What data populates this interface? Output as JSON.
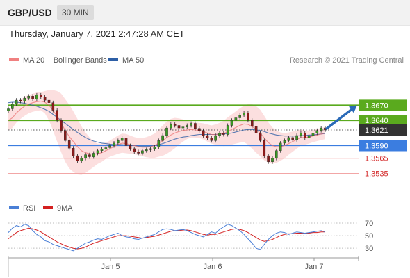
{
  "header": {
    "symbol": "GBP/USD",
    "timeframe_button": "30 MIN",
    "datetime": "Thursday, January 7, 2021 2:47:28 AM CET"
  },
  "colors": {
    "ma20": "#e96a6a",
    "bollinger_fill": "#fbd4d4",
    "ma50": "#2d5fa6",
    "resistance": "#5aaa1e",
    "support": "#3b7de0",
    "support_light": "#f2a6a6",
    "support_label": "#d42a2a",
    "current_price": "#333333",
    "arrow": "#2a6ab8",
    "candle_up": "#3a9a22",
    "candle_down": "#8c1a1a",
    "rsi": "#4a7fd6",
    "rsi_9ma": "#d42020"
  },
  "legend_main": [
    {
      "label": "MA 20 + Bollinger Bands",
      "color": "#f08080"
    },
    {
      "label": "MA 50",
      "color": "#2d5fa6"
    }
  ],
  "credit": "Research © 2021 Trading Central",
  "legend_rsi": [
    {
      "label": "RSI",
      "color": "#4a7fd6"
    },
    {
      "label": "9MA",
      "color": "#d42020"
    }
  ],
  "chart_data": {
    "type": "line",
    "title": "GBP/USD",
    "x_ticks": [
      "Jan 5",
      "Jan 6",
      "Jan 7"
    ],
    "y_range": [
      1.35,
      1.372
    ],
    "levels": [
      {
        "label": "1.3670",
        "value": 1.367,
        "type": "resistance"
      },
      {
        "label": "1.3640",
        "value": 1.364,
        "type": "resistance"
      },
      {
        "label": "1.3621",
        "value": 1.3621,
        "type": "current"
      },
      {
        "label": "1.3590",
        "value": 1.359,
        "type": "pivot"
      },
      {
        "label": "1.3565",
        "value": 1.3565,
        "type": "support"
      },
      {
        "label": "1.3535",
        "value": 1.3535,
        "type": "support"
      }
    ],
    "price_close": [
      1.3663,
      1.3672,
      1.368,
      1.3678,
      1.3684,
      1.3688,
      1.3682,
      1.369,
      1.3686,
      1.368,
      1.3675,
      1.366,
      1.364,
      1.362,
      1.36,
      1.3585,
      1.357,
      1.356,
      1.3565,
      1.3572,
      1.3568,
      1.3575,
      1.358,
      1.3583,
      1.3586,
      1.359,
      1.3595,
      1.36,
      1.3605,
      1.359,
      1.3584,
      1.3578,
      1.3575,
      1.358,
      1.3582,
      1.3584,
      1.3587,
      1.36,
      1.361,
      1.3625,
      1.3632,
      1.363,
      1.3625,
      1.3627,
      1.363,
      1.3634,
      1.3624,
      1.362,
      1.361,
      1.3605,
      1.36,
      1.361,
      1.3615,
      1.3612,
      1.363,
      1.364,
      1.3645,
      1.365,
      1.3655,
      1.364,
      1.3628,
      1.3615,
      1.36,
      1.357,
      1.3558,
      1.3565,
      1.358,
      1.3595,
      1.36,
      1.3606,
      1.3602,
      1.361,
      1.3615,
      1.3605,
      1.361,
      1.3615,
      1.362,
      1.3625,
      1.3621
    ],
    "ma20": [
      1.364,
      1.3645,
      1.3655,
      1.3662,
      1.3668,
      1.3672,
      1.3675,
      1.3677,
      1.3678,
      1.3676,
      1.367,
      1.366,
      1.3648,
      1.3635,
      1.362,
      1.3608,
      1.3598,
      1.3588,
      1.358,
      1.3576,
      1.3574,
      1.3573,
      1.3574,
      1.3576,
      1.358,
      1.3584,
      1.3588,
      1.3592,
      1.3595,
      1.3594,
      1.3592,
      1.359,
      1.3588,
      1.3587,
      1.3587,
      1.3588,
      1.359,
      1.3595,
      1.36,
      1.3606,
      1.3611,
      1.3615,
      1.3618,
      1.362,
      1.3621,
      1.3622,
      1.3621,
      1.362,
      1.3618,
      1.3615,
      1.3612,
      1.3612,
      1.3613,
      1.3614,
      1.3618,
      1.3622,
      1.3626,
      1.363,
      1.3633,
      1.3632,
      1.3628,
      1.3622,
      1.3615,
      1.3605,
      1.3596,
      1.359,
      1.3588,
      1.3588,
      1.359,
      1.3594,
      1.3598,
      1.3602,
      1.3606,
      1.3606,
      1.3607,
      1.3609,
      1.3611,
      1.3613,
      1.3615
    ],
    "ma50": [
      1.3675,
      1.3676,
      1.3676,
      1.3675,
      1.3674,
      1.3672,
      1.367,
      1.3668,
      1.3665,
      1.3662,
      1.3658,
      1.3652,
      1.3646,
      1.364,
      1.3634,
      1.3628,
      1.3622,
      1.3616,
      1.3611,
      1.3606,
      1.3602,
      1.3599,
      1.3597,
      1.3595,
      1.3594,
      1.3593,
      1.3592,
      1.3592,
      1.3592,
      1.3591,
      1.359,
      1.359,
      1.3589,
      1.3589,
      1.3589,
      1.3589,
      1.359,
      1.3592,
      1.3594,
      1.3597,
      1.36,
      1.3603,
      1.3605,
      1.3607,
      1.3608,
      1.361,
      1.3611,
      1.3612,
      1.3612,
      1.3612,
      1.3612,
      1.3612,
      1.3613,
      1.3613,
      1.3614,
      1.3615,
      1.3617,
      1.3619,
      1.3621,
      1.3622,
      1.3622,
      1.3621,
      1.362,
      1.3618,
      1.3615,
      1.3613,
      1.3611,
      1.361,
      1.3609,
      1.3609,
      1.3609,
      1.3609,
      1.361,
      1.361,
      1.3611,
      1.3611,
      1.3612,
      1.3613,
      1.3614
    ],
    "bb_width": [
      0.002,
      0.002,
      0.0019,
      0.0019,
      0.0019,
      0.0018,
      0.0018,
      0.0018,
      0.0018,
      0.0022,
      0.003,
      0.004,
      0.005,
      0.0058,
      0.0062,
      0.0063,
      0.006,
      0.0055,
      0.0048,
      0.004,
      0.0032,
      0.0025,
      0.002,
      0.0018,
      0.0016,
      0.0016,
      0.0017,
      0.0018,
      0.0019,
      0.0019,
      0.0018,
      0.0017,
      0.0017,
      0.0018,
      0.002,
      0.0022,
      0.0024,
      0.0027,
      0.003,
      0.0032,
      0.0032,
      0.003,
      0.0026,
      0.0022,
      0.0018,
      0.0016,
      0.0015,
      0.0015,
      0.0016,
      0.0017,
      0.0018,
      0.002,
      0.0022,
      0.0025,
      0.0028,
      0.003,
      0.0032,
      0.0034,
      0.0036,
      0.004,
      0.0044,
      0.0046,
      0.0046,
      0.0044,
      0.004,
      0.0036,
      0.0032,
      0.0028,
      0.0025,
      0.0022,
      0.002,
      0.0018,
      0.0016,
      0.0014,
      0.0013,
      0.0012,
      0.0012,
      0.0012,
      0.0012
    ],
    "rsi": {
      "ticks": [
        70,
        50,
        30
      ],
      "range": [
        18,
        80
      ],
      "rsi_values": [
        55,
        62,
        66,
        64,
        68,
        66,
        58,
        52,
        48,
        42,
        40,
        36,
        34,
        32,
        30,
        28,
        26,
        30,
        34,
        38,
        40,
        43,
        45,
        44,
        47,
        50,
        52,
        54,
        50,
        48,
        47,
        45,
        44,
        46,
        48,
        50,
        52,
        56,
        60,
        61,
        60,
        58,
        59,
        60,
        58,
        55,
        52,
        50,
        48,
        52,
        56,
        54,
        60,
        64,
        68,
        66,
        62,
        58,
        52,
        45,
        38,
        30,
        28,
        36,
        44,
        50,
        54,
        56,
        55,
        52,
        54,
        56,
        55,
        54,
        55,
        56,
        57,
        58,
        56
      ],
      "ma9_values": [
        45,
        50,
        55,
        58,
        60,
        62,
        61,
        59,
        56,
        52,
        48,
        44,
        40,
        37,
        34,
        32,
        30,
        29,
        30,
        32,
        35,
        38,
        40,
        42,
        44,
        46,
        48,
        50,
        50,
        50,
        49,
        48,
        47,
        46,
        47,
        48,
        49,
        51,
        53,
        55,
        57,
        58,
        58,
        59,
        59,
        58,
        56,
        54,
        52,
        51,
        52,
        52,
        54,
        56,
        58,
        60,
        61,
        60,
        58,
        55,
        51,
        47,
        43,
        41,
        42,
        44,
        47,
        50,
        52,
        53,
        53,
        54,
        54,
        54,
        54,
        55,
        55,
        56,
        56
      ]
    }
  }
}
